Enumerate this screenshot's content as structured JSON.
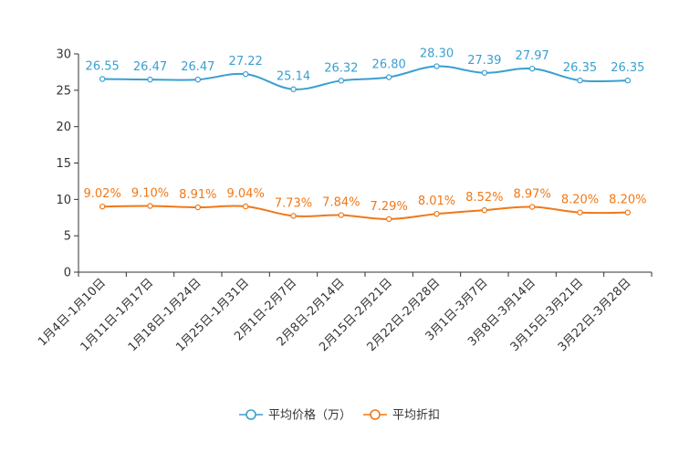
{
  "chart_data": {
    "type": "line",
    "categories": [
      "1月4日-1月10日",
      "1月11日-1月17日",
      "1月18日-1月24日",
      "1月25日-1月31日",
      "2月1日-2月7日",
      "2月8日-2月14日",
      "2月15日-2月21日",
      "2月22日-2月28日",
      "3月1日-3月7日",
      "3月8日-3月14日",
      "3月15日-3月21日",
      "3月22日-3月28日"
    ],
    "series": [
      {
        "name": "平均价格（万）",
        "color": "#3a9fd0",
        "values": [
          26.55,
          26.47,
          26.47,
          27.22,
          25.14,
          26.32,
          26.8,
          28.3,
          27.39,
          27.97,
          26.35,
          26.35
        ],
        "labels": [
          "26.55",
          "26.47",
          "26.47",
          "27.22",
          "25.14",
          "26.32",
          "26.80",
          "28.30",
          "27.39",
          "27.97",
          "26.35",
          "26.35"
        ]
      },
      {
        "name": "平均折扣",
        "color": "#f07817",
        "values": [
          9.02,
          9.1,
          8.91,
          9.04,
          7.73,
          7.84,
          7.29,
          8.01,
          8.52,
          8.97,
          8.2,
          8.2
        ],
        "labels": [
          "9.02%",
          "9.10%",
          "8.91%",
          "9.04%",
          "7.73%",
          "7.84%",
          "7.29%",
          "8.01%",
          "8.52%",
          "8.97%",
          "8.20%",
          "8.20%"
        ]
      }
    ],
    "ylim": [
      0,
      30
    ],
    "yticks": [
      0,
      5,
      10,
      15,
      20,
      25,
      30
    ],
    "legend_position": "bottom-center",
    "grid": false,
    "title": "",
    "xlabel": "",
    "ylabel": ""
  }
}
